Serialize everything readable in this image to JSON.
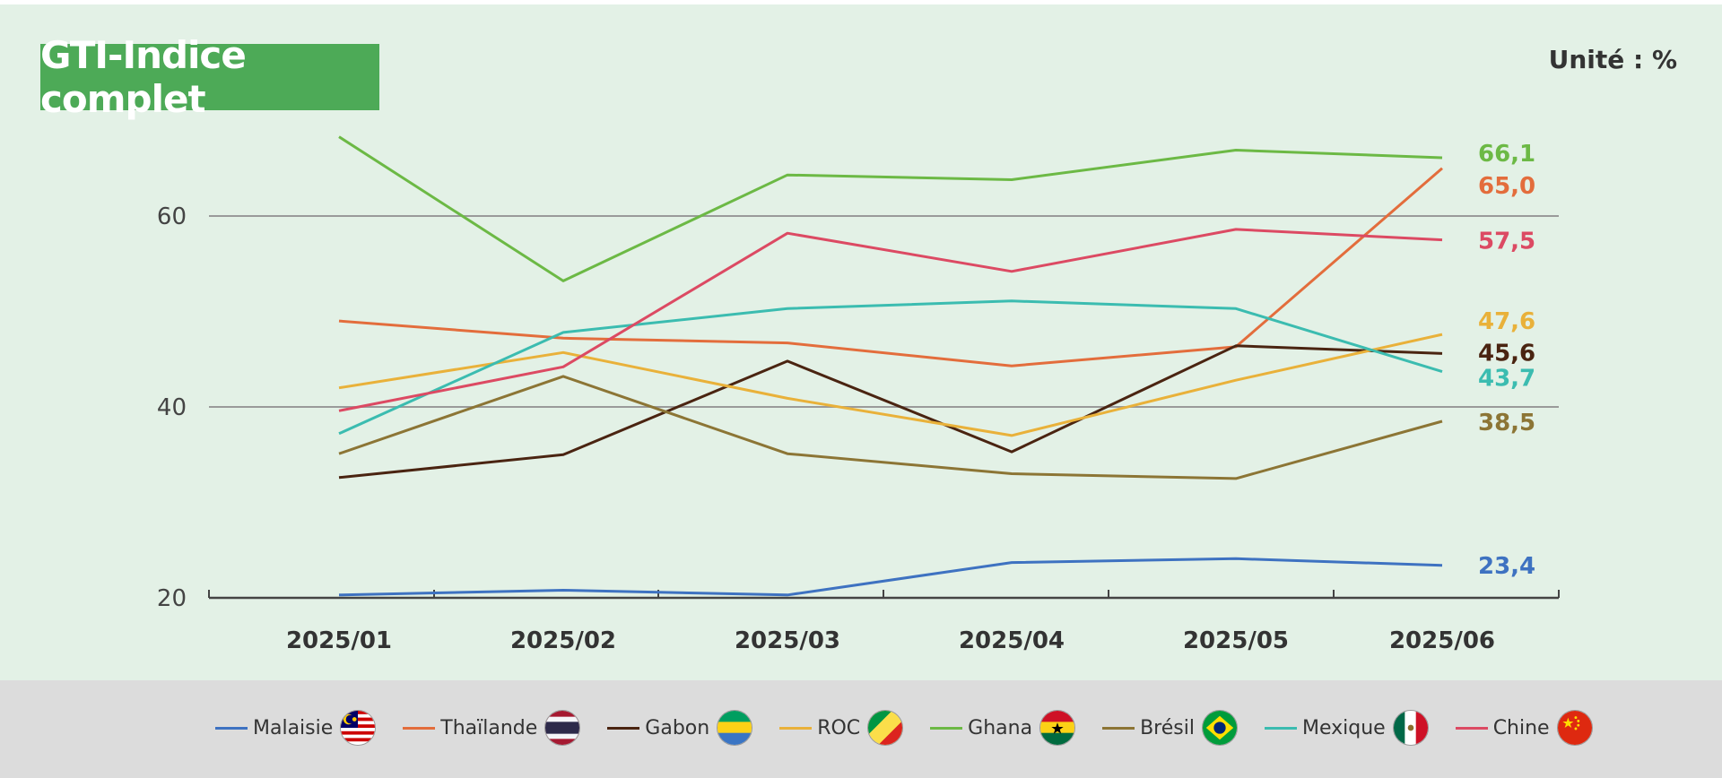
{
  "title": "GTI-Indice complet",
  "unit_label": "Unité : %",
  "chart_data": {
    "type": "line",
    "title": "GTI-Indice complet",
    "x": [
      "2025/01",
      "2025/02",
      "2025/03",
      "2025/04",
      "2025/05",
      "2025/06"
    ],
    "ylim": [
      20,
      70
    ],
    "yticks": [
      20,
      40,
      60
    ],
    "gridlines_at": [
      40,
      60
    ],
    "legend_position": "bottom",
    "series": [
      {
        "name": "Malaisie",
        "color": "#3e72c1",
        "flag_icon": "malaysia-flag-icon",
        "values": [
          20.3,
          20.8,
          20.3,
          23.7,
          24.1,
          23.4
        ],
        "end_label": "23,4"
      },
      {
        "name": "Thaïlande",
        "color": "#e36d3c",
        "flag_icon": "thailand-flag-icon",
        "values": [
          49.0,
          47.2,
          46.7,
          44.3,
          46.3,
          65.0
        ],
        "end_label": "65,0"
      },
      {
        "name": "Gabon",
        "color": "#4a2411",
        "flag_icon": "gabon-flag-icon",
        "values": [
          32.6,
          35.0,
          44.8,
          35.3,
          46.4,
          45.6
        ],
        "end_label": "45,6"
      },
      {
        "name": "ROC",
        "color": "#e9b13a",
        "flag_icon": "congo-flag-icon",
        "values": [
          42.0,
          45.7,
          40.9,
          37.0,
          42.8,
          47.6
        ],
        "end_label": "47,6"
      },
      {
        "name": "Ghana",
        "color": "#6cb945",
        "flag_icon": "ghana-flag-icon",
        "values": [
          68.3,
          53.2,
          64.3,
          63.8,
          66.9,
          66.1
        ],
        "end_label": "66,1"
      },
      {
        "name": "Brésil",
        "color": "#8c7535",
        "flag_icon": "brazil-flag-icon",
        "values": [
          35.1,
          43.2,
          35.1,
          33.0,
          32.5,
          38.5
        ],
        "end_label": "38,5"
      },
      {
        "name": "Mexique",
        "color": "#3bbcb0",
        "flag_icon": "mexico-flag-icon",
        "values": [
          37.2,
          47.8,
          50.3,
          51.1,
          50.3,
          43.7
        ],
        "end_label": "43,7"
      },
      {
        "name": "Chine",
        "color": "#dc4a63",
        "flag_icon": "china-flag-icon",
        "values": [
          39.6,
          44.2,
          58.2,
          54.2,
          58.6,
          57.5
        ],
        "end_label": "57,5"
      }
    ]
  }
}
